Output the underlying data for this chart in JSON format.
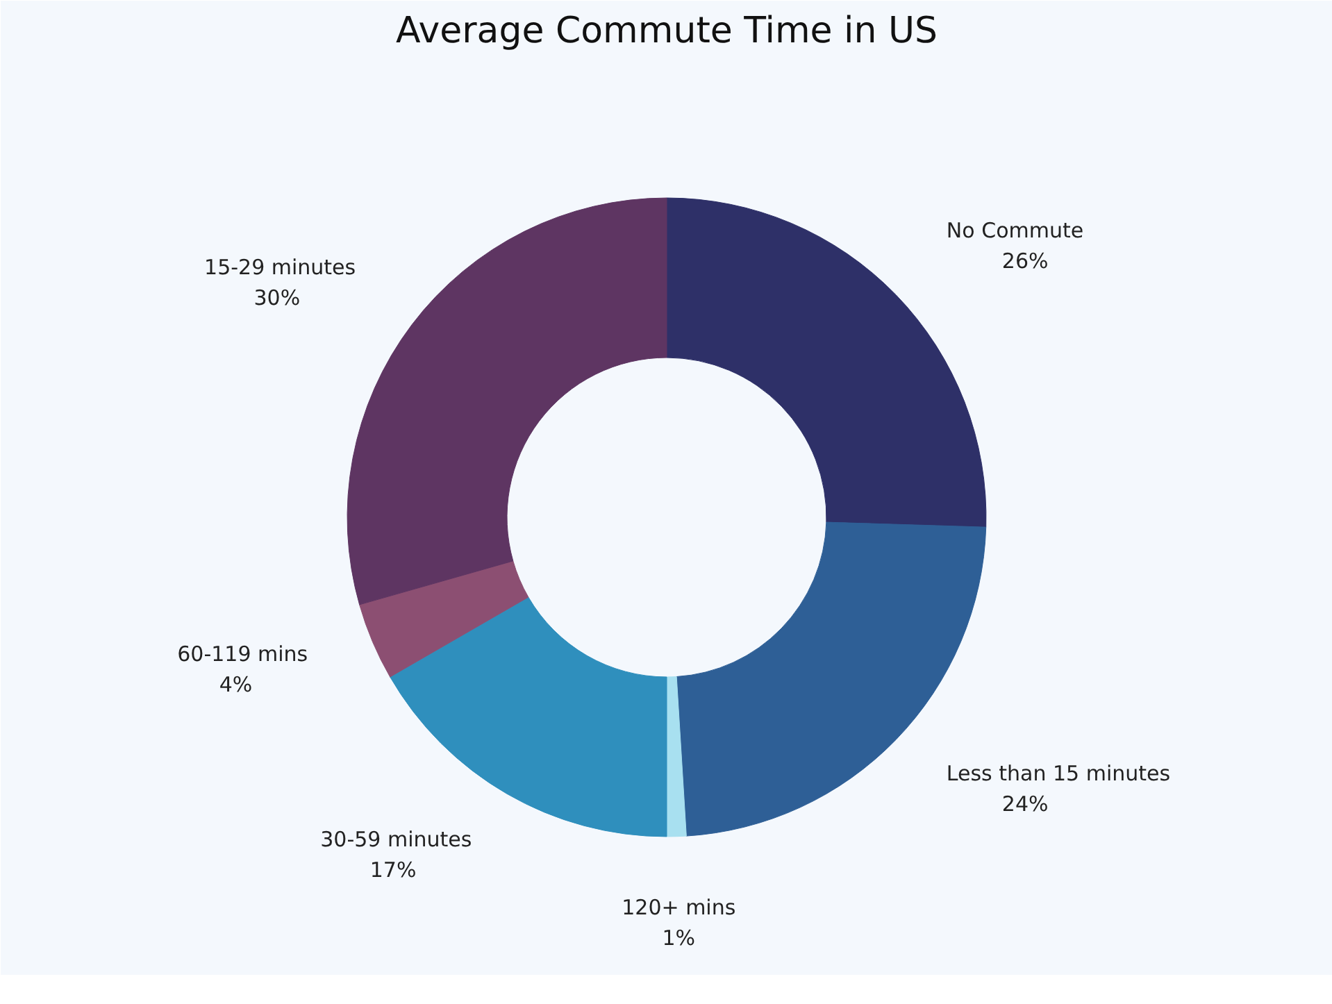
{
  "chart_data": {
    "type": "donut",
    "title": "Average Commute Time in US",
    "categories": [
      "No Commute",
      "Less than 15 minutes",
      "120+ mins",
      "30-59 minutes",
      "60-119 mins",
      "15-29 minutes"
    ],
    "values": [
      26,
      24,
      1,
      17,
      4,
      30
    ],
    "value_labels": [
      "26%",
      "24%",
      "1%",
      "17%",
      "4%",
      "30%"
    ],
    "colors": [
      "#2e3068",
      "#2e5f96",
      "#a8e0f0",
      "#2f8fbd",
      "#8c4f72",
      "#5e3562"
    ]
  }
}
